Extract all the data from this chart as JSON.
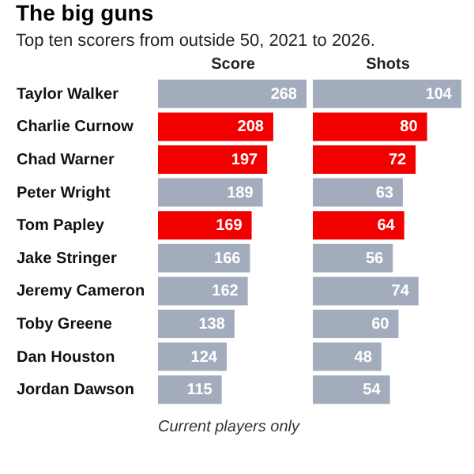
{
  "chart_data": [
    {
      "type": "bar",
      "orientation": "horizontal",
      "title": "The big guns",
      "subtitle": "Top ten scorers from outside 50, 2021 to 2026.",
      "xlabel": "Score",
      "annotations": [
        "Current players only"
      ],
      "categories": [
        "Taylor Walker",
        "Charlie Curnow",
        "Chad Warner",
        "Peter Wright",
        "Tom Papley",
        "Jake Stringer",
        "Jeremy Cameron",
        "Toby Greene",
        "Dan Houston",
        "Jordan Dawson"
      ],
      "values": [
        268,
        208,
        197,
        189,
        169,
        166,
        162,
        138,
        124,
        115
      ],
      "colors": [
        "#a3acbd",
        "#f20000",
        "#f20000",
        "#a3acbd",
        "#f20000",
        "#a3acbd",
        "#a3acbd",
        "#a3acbd",
        "#a3acbd",
        "#a3acbd"
      ],
      "data_labels": true,
      "tick_labels": "y",
      "grid": false
    },
    {
      "type": "bar",
      "orientation": "horizontal",
      "xlabel": "Shots",
      "values": [
        104,
        80,
        72,
        63,
        64,
        56,
        74,
        60,
        48,
        54
      ],
      "colors": [
        "#a3acbd",
        "#f20000",
        "#f20000",
        "#a3acbd",
        "#f20000",
        "#a3acbd",
        "#a3acbd",
        "#a3acbd",
        "#a3acbd",
        "#a3acbd"
      ],
      "data_labels": true,
      "tick_labels": false,
      "grid": false
    }
  ]
}
